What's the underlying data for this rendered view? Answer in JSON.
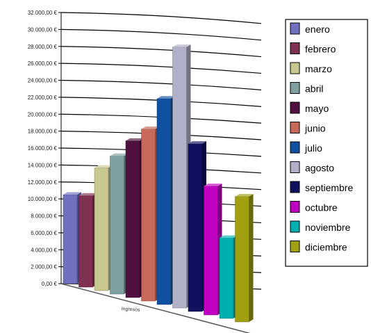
{
  "chart_data": {
    "type": "bar",
    "categories": [
      "Ingresos"
    ],
    "series": [
      {
        "name": "enero",
        "values": [
          10500
        ],
        "color": "#7070c0"
      },
      {
        "name": "febrero",
        "values": [
          10800
        ],
        "color": "#803050"
      },
      {
        "name": "marzo",
        "values": [
          14500
        ],
        "color": "#c8c890"
      },
      {
        "name": "abril",
        "values": [
          16300
        ],
        "color": "#7fa0a0"
      },
      {
        "name": "mayo",
        "values": [
          18500
        ],
        "color": "#501040"
      },
      {
        "name": "junio",
        "values": [
          20300
        ],
        "color": "#c86a5a"
      },
      {
        "name": "julio",
        "values": [
          24300
        ],
        "color": "#1050a0"
      },
      {
        "name": "agosto",
        "values": [
          30800
        ],
        "color": "#b0b0c8"
      },
      {
        "name": "septiembre",
        "values": [
          19800
        ],
        "color": "#101060"
      },
      {
        "name": "octubre",
        "values": [
          15200
        ],
        "color": "#c000c0"
      },
      {
        "name": "noviembre",
        "values": [
          9500
        ],
        "color": "#00b0b0"
      },
      {
        "name": "diciembre",
        "values": [
          14800
        ],
        "color": "#a0a010"
      }
    ],
    "yticks": [
      "32.000,00 €",
      "30.000,00 €",
      "28.000,00 €",
      "26.000,00 €",
      "24.000,00 €",
      "22.000,00 €",
      "20.000,00 €",
      "18.000,00 €",
      "16.000,00 €",
      "14.000,00 €",
      "12.000,00 €",
      "10.000,00 €",
      "8.000,00 €",
      "6.000,00 €",
      "4.000,00 €",
      "2.000,00 €",
      "0,00 €"
    ],
    "ylim": [
      0,
      32000
    ],
    "title": "",
    "xlabel": "",
    "ylabel": "",
    "grid": true,
    "legend": "right"
  }
}
